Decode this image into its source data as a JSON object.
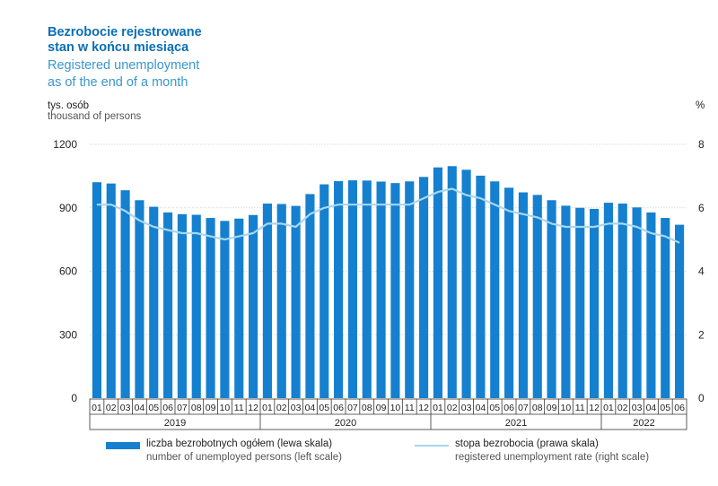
{
  "title": {
    "pl_line1": "Bezrobocie rejestrowane",
    "pl_line2": "stan w końcu miesiąca",
    "en_line1": "Registered unemployment",
    "en_line2": "as of the end of a month"
  },
  "left_unit": {
    "pl": "tys. osób",
    "en": "thousand of persons"
  },
  "right_unit": "%",
  "colors": {
    "bar": "#1580cf",
    "line": "#a9d6f0",
    "title_pl": "#0a6fb5",
    "title_en": "#3a97cf"
  },
  "legend": {
    "bars_pl": "liczba bezrobotnych ogółem (lewa skala)",
    "bars_en": "number of unemployed persons (left scale)",
    "line_pl": "stopa bezrobocia (prawa skala)",
    "line_en": "registered unemployment rate (right scale)"
  },
  "chart_data": {
    "type": "bar",
    "title": "Bezrobocie rejestrowane stan w końcu miesiąca / Registered unemployment as of the end of a month",
    "categories": [
      "01",
      "02",
      "03",
      "04",
      "05",
      "06",
      "07",
      "08",
      "09",
      "10",
      "11",
      "12",
      "01",
      "02",
      "03",
      "04",
      "05",
      "06",
      "07",
      "08",
      "09",
      "10",
      "11",
      "12",
      "01",
      "02",
      "03",
      "04",
      "05",
      "06",
      "07",
      "08",
      "09",
      "10",
      "11",
      "12",
      "01",
      "02",
      "03",
      "04",
      "05",
      "06"
    ],
    "years": [
      {
        "label": "2019",
        "months": 12
      },
      {
        "label": "2020",
        "months": 12
      },
      {
        "label": "2021",
        "months": 12
      },
      {
        "label": "2022",
        "months": 6
      }
    ],
    "left_axis": {
      "label": "tys. osób / thousand of persons",
      "ylim": [
        0,
        1200
      ],
      "ticks": [
        "0",
        "300",
        "600",
        "900",
        "1200"
      ]
    },
    "right_axis": {
      "label": "%",
      "ylim": [
        0,
        8
      ],
      "ticks": [
        "0",
        "2",
        "4",
        "6",
        "8"
      ]
    },
    "series": [
      {
        "name": "liczba bezrobotnych ogółem (lewa skala)",
        "axis": "left",
        "type": "bar",
        "values": [
          1021,
          1015,
          983,
          936,
          905,
          878,
          870,
          867,
          852,
          838,
          849,
          866,
          920,
          918,
          909,
          965,
          1011,
          1026,
          1030,
          1029,
          1024,
          1017,
          1025,
          1046,
          1091,
          1097,
          1080,
          1052,
          1025,
          995,
          973,
          961,
          936,
          910,
          900,
          895,
          924,
          920,
          902,
          878,
          852,
          820
        ]
      },
      {
        "name": "stopa bezrobocia (prawa skala)",
        "axis": "right",
        "type": "line",
        "values": [
          6.1,
          6.1,
          5.9,
          5.6,
          5.4,
          5.3,
          5.2,
          5.2,
          5.1,
          5.0,
          5.1,
          5.2,
          5.5,
          5.5,
          5.4,
          5.8,
          6.0,
          6.1,
          6.1,
          6.1,
          6.1,
          6.1,
          6.1,
          6.3,
          6.5,
          6.6,
          6.4,
          6.3,
          6.1,
          5.9,
          5.8,
          5.7,
          5.5,
          5.4,
          5.4,
          5.4,
          5.5,
          5.5,
          5.4,
          5.2,
          5.1,
          4.9
        ]
      }
    ]
  }
}
